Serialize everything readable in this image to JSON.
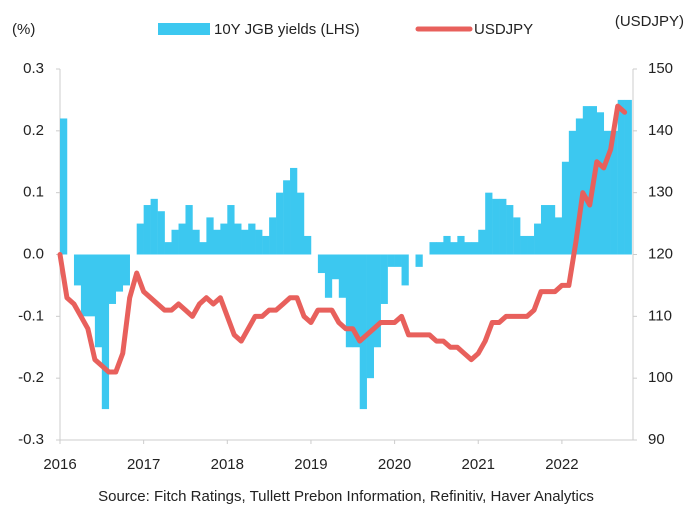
{
  "chart_data": {
    "type": "combo",
    "y_label": "(%)",
    "y2_label": "(USDJPY)",
    "source": "Source: Fitch Ratings, Tullett Prebon Information, Refinitiv, Haver Analytics",
    "x": [
      2016.0,
      2016.083,
      2016.167,
      2016.25,
      2016.333,
      2016.417,
      2016.5,
      2016.583,
      2016.667,
      2016.75,
      2016.833,
      2016.917,
      2017.0,
      2017.083,
      2017.167,
      2017.25,
      2017.333,
      2017.417,
      2017.5,
      2017.583,
      2017.667,
      2017.75,
      2017.833,
      2017.917,
      2018.0,
      2018.083,
      2018.167,
      2018.25,
      2018.333,
      2018.417,
      2018.5,
      2018.583,
      2018.667,
      2018.75,
      2018.833,
      2018.917,
      2019.0,
      2019.083,
      2019.167,
      2019.25,
      2019.333,
      2019.417,
      2019.5,
      2019.583,
      2019.667,
      2019.75,
      2019.833,
      2019.917,
      2020.0,
      2020.083,
      2020.167,
      2020.25,
      2020.333,
      2020.417,
      2020.5,
      2020.583,
      2020.667,
      2020.75,
      2020.833,
      2020.917,
      2021.0,
      2021.083,
      2021.167,
      2021.25,
      2021.333,
      2021.417,
      2021.5,
      2021.583,
      2021.667,
      2021.75,
      2021.833,
      2021.917,
      2022.0,
      2022.083,
      2022.167,
      2022.25,
      2022.333,
      2022.417,
      2022.5,
      2022.583,
      2022.667,
      2022.75
    ],
    "series": [
      {
        "name": "10Y JGB yields (LHS)",
        "type": "bar",
        "color": "#3cc8f0",
        "axis": "y",
        "values": [
          0.22,
          0.0,
          -0.05,
          -0.1,
          -0.1,
          -0.15,
          -0.25,
          -0.08,
          -0.06,
          -0.05,
          0.0,
          0.05,
          0.08,
          0.09,
          0.07,
          0.02,
          0.04,
          0.05,
          0.08,
          0.04,
          0.02,
          0.06,
          0.04,
          0.05,
          0.08,
          0.05,
          0.04,
          0.05,
          0.04,
          0.03,
          0.06,
          0.1,
          0.12,
          0.14,
          0.1,
          0.03,
          0.0,
          -0.03,
          -0.07,
          -0.04,
          -0.07,
          -0.15,
          -0.15,
          -0.25,
          -0.2,
          -0.15,
          -0.08,
          -0.02,
          -0.02,
          -0.05,
          0.0,
          -0.02,
          0.0,
          0.02,
          0.02,
          0.03,
          0.02,
          0.03,
          0.02,
          0.02,
          0.04,
          0.1,
          0.09,
          0.09,
          0.08,
          0.06,
          0.03,
          0.03,
          0.05,
          0.08,
          0.08,
          0.06,
          0.15,
          0.2,
          0.22,
          0.24,
          0.24,
          0.23,
          0.2,
          0.2,
          0.25,
          0.25
        ]
      },
      {
        "name": "USDJPY",
        "type": "line",
        "color": "#e8605c",
        "axis": "y2",
        "values": [
          120,
          113,
          112,
          110,
          108,
          103,
          102,
          101,
          101,
          104,
          113,
          117,
          114,
          113,
          112,
          111,
          111,
          112,
          111,
          110,
          112,
          113,
          112,
          113,
          110,
          107,
          106,
          108,
          110,
          110,
          111,
          111,
          112,
          113,
          113,
          110,
          109,
          111,
          111,
          111,
          109,
          108,
          108,
          106,
          107,
          108,
          109,
          109,
          109,
          110,
          107,
          107,
          107,
          107,
          106,
          106,
          105,
          105,
          104,
          103,
          104,
          106,
          109,
          109,
          110,
          110,
          110,
          110,
          111,
          114,
          114,
          114,
          115,
          115,
          122,
          130,
          128,
          135,
          134,
          137,
          144,
          143
        ]
      }
    ],
    "xlim": [
      2016,
      2022.85
    ],
    "xticks": [
      2016,
      2017,
      2018,
      2019,
      2020,
      2021,
      2022
    ],
    "ylim": [
      -0.3,
      0.3
    ],
    "yticks": [
      0.3,
      0.2,
      0.1,
      {
        "value": 0,
        "label": "0.0"
      },
      -0.1,
      -0.2,
      -0.3
    ],
    "y2lim": [
      90,
      150
    ],
    "y2ticks": [
      150,
      140,
      130,
      120,
      110,
      100,
      90
    ],
    "legend": "top"
  }
}
